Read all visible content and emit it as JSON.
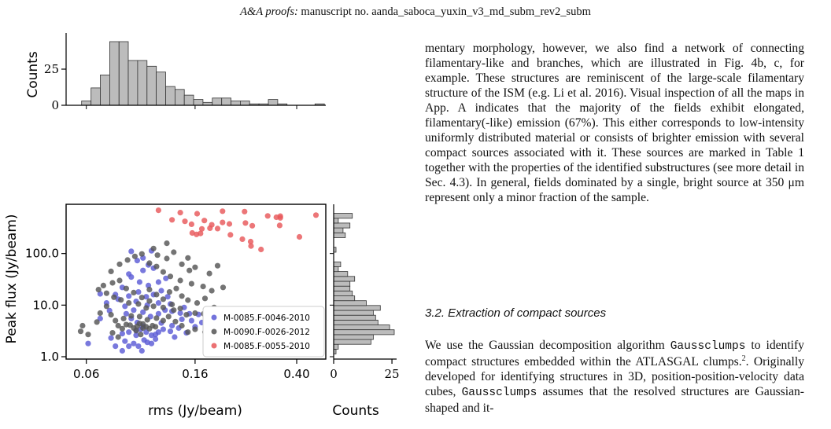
{
  "header": {
    "journal": "A&A proofs:",
    "rest": " manuscript no. aanda_saboca_yuxin_v3_md_subm_rev2_subm"
  },
  "figure": {
    "top_hist_ylabel": "Counts",
    "top_hist_yticks": [
      "0",
      "25"
    ],
    "main_xlabel": "rms (Jy/beam)",
    "main_ylabel": "Peak flux (Jy/beam)",
    "main_xticks": [
      "0.06",
      "0.16",
      "0.40"
    ],
    "main_yticks": [
      "1.0",
      "10.0",
      "100.0"
    ],
    "right_hist_xlabel": "Counts",
    "right_hist_xticks": [
      "0",
      "25"
    ],
    "legend": [
      {
        "label": "M-0085.F-0046-2010",
        "color": "#5b5bd6"
      },
      {
        "label": "M-0090.F-0026-2012",
        "color": "#555555"
      },
      {
        "label": "M-0085.F-0055-2010",
        "color": "#e8585a"
      }
    ]
  },
  "chart_data": {
    "type": "scatter",
    "xlabel": "rms (Jy/beam)",
    "ylabel": "Peak flux (Jy/beam)",
    "x_scale": "log",
    "y_scale": "log",
    "xlim": [
      0.05,
      0.52
    ],
    "ylim": [
      0.9,
      900
    ],
    "grid": false,
    "legend_position": "lower-right",
    "series": [
      {
        "name": "M-0085.F-0046-2010",
        "color": "#5b5bd6",
        "points": [
          [
            0.061,
            1.8
          ],
          [
            0.075,
            2.3
          ],
          [
            0.078,
            1.6
          ],
          [
            0.083,
            1.3
          ],
          [
            0.085,
            2.0
          ],
          [
            0.088,
            1.6
          ],
          [
            0.092,
            1.8
          ],
          [
            0.096,
            1.6
          ],
          [
            0.099,
            1.3
          ],
          [
            0.101,
            2.1
          ],
          [
            0.104,
            1.9
          ],
          [
            0.108,
            1.8
          ],
          [
            0.112,
            2.2
          ],
          [
            0.083,
            2.8
          ],
          [
            0.088,
            3.0
          ],
          [
            0.094,
            2.6
          ],
          [
            0.098,
            3.4
          ],
          [
            0.103,
            3.0
          ],
          [
            0.108,
            2.6
          ],
          [
            0.115,
            3.0
          ],
          [
            0.12,
            3.4
          ],
          [
            0.128,
            3.1
          ],
          [
            0.138,
            3.6
          ],
          [
            0.148,
            2.9
          ],
          [
            0.16,
            3.8
          ],
          [
            0.17,
            4.6
          ],
          [
            0.155,
            5.0
          ],
          [
            0.142,
            5.3
          ],
          [
            0.13,
            4.0
          ],
          [
            0.118,
            4.5
          ],
          [
            0.095,
            4.6
          ],
          [
            0.09,
            5.5
          ],
          [
            0.086,
            6.8
          ],
          [
            0.092,
            8.0
          ],
          [
            0.1,
            7.3
          ],
          [
            0.107,
            6.0
          ],
          [
            0.115,
            6.8
          ],
          [
            0.122,
            8.0
          ],
          [
            0.13,
            7.6
          ],
          [
            0.14,
            7.0
          ],
          [
            0.152,
            6.8
          ],
          [
            0.165,
            6.6
          ],
          [
            0.145,
            9.0
          ],
          [
            0.128,
            10.5
          ],
          [
            0.115,
            11.0
          ],
          [
            0.104,
            10.0
          ],
          [
            0.094,
            11.8
          ],
          [
            0.085,
            9.5
          ],
          [
            0.08,
            13.0
          ],
          [
            0.088,
            15.0
          ],
          [
            0.096,
            18.0
          ],
          [
            0.103,
            14.5
          ],
          [
            0.11,
            16.0
          ],
          [
            0.118,
            19.0
          ],
          [
            0.125,
            14.5
          ],
          [
            0.105,
            24.0
          ],
          [
            0.097,
            28.0
          ],
          [
            0.115,
            28.0
          ],
          [
            0.123,
            33.0
          ],
          [
            0.09,
            35.0
          ],
          [
            0.088,
            40.0
          ],
          [
            0.1,
            47.0
          ],
          [
            0.11,
            52.0
          ],
          [
            0.105,
            60.0
          ],
          [
            0.1,
            82.0
          ],
          [
            0.095,
            73.0
          ],
          [
            0.108,
            113.0
          ],
          [
            0.09,
            110.0
          ],
          [
            0.068,
            5.5
          ],
          [
            0.074,
            7.8
          ],
          [
            0.078,
            16.0
          ],
          [
            0.083,
            22.0
          ],
          [
            0.072,
            11.0
          ],
          [
            0.068,
            16.5
          ],
          [
            0.1,
            3.9
          ],
          [
            0.094,
            3.2
          ],
          [
            0.112,
            2.7
          ],
          [
            0.133,
            2.4
          ]
        ]
      },
      {
        "name": "M-0090.F-0026-2012",
        "color": "#555555",
        "points": [
          [
            0.057,
            3.1
          ],
          [
            0.058,
            4.0
          ],
          [
            0.061,
            2.7
          ],
          [
            0.066,
            4.7
          ],
          [
            0.068,
            7.0
          ],
          [
            0.072,
            9.5
          ],
          [
            0.075,
            6.5
          ],
          [
            0.078,
            5.0
          ],
          [
            0.08,
            4.0
          ],
          [
            0.083,
            3.5
          ],
          [
            0.086,
            4.2
          ],
          [
            0.089,
            4.1
          ],
          [
            0.092,
            3.6
          ],
          [
            0.095,
            3.9
          ],
          [
            0.097,
            4.4
          ],
          [
            0.1,
            4.3
          ],
          [
            0.103,
            3.8
          ],
          [
            0.106,
            3.5
          ],
          [
            0.109,
            4.0
          ],
          [
            0.112,
            3.8
          ],
          [
            0.094,
            3.2
          ],
          [
            0.098,
            2.7
          ],
          [
            0.1,
            3.6
          ],
          [
            0.08,
            2.4
          ],
          [
            0.076,
            2.9
          ],
          [
            0.084,
            5.5
          ],
          [
            0.09,
            6.2
          ],
          [
            0.097,
            6.0
          ],
          [
            0.104,
            5.2
          ],
          [
            0.113,
            5.6
          ],
          [
            0.12,
            5.0
          ],
          [
            0.126,
            6.0
          ],
          [
            0.134,
            4.8
          ],
          [
            0.142,
            4.0
          ],
          [
            0.15,
            3.0
          ],
          [
            0.16,
            3.4
          ],
          [
            0.175,
            3.0
          ],
          [
            0.148,
            6.5
          ],
          [
            0.16,
            7.0
          ],
          [
            0.173,
            6.8
          ],
          [
            0.14,
            8.6
          ],
          [
            0.13,
            10.3
          ],
          [
            0.12,
            9.0
          ],
          [
            0.11,
            9.5
          ],
          [
            0.103,
            8.8
          ],
          [
            0.096,
            10.5
          ],
          [
            0.088,
            11.0
          ],
          [
            0.082,
            12.6
          ],
          [
            0.077,
            14.2
          ],
          [
            0.072,
            17.0
          ],
          [
            0.067,
            20.0
          ],
          [
            0.07,
            24.0
          ],
          [
            0.076,
            27.0
          ],
          [
            0.081,
            30.0
          ],
          [
            0.086,
            21.0
          ],
          [
            0.092,
            17.5
          ],
          [
            0.099,
            14.0
          ],
          [
            0.106,
            20.0
          ],
          [
            0.113,
            16.0
          ],
          [
            0.12,
            13.0
          ],
          [
            0.127,
            18.0
          ],
          [
            0.135,
            21.0
          ],
          [
            0.142,
            15.0
          ],
          [
            0.15,
            12.5
          ],
          [
            0.163,
            11.0
          ],
          [
            0.175,
            13.5
          ],
          [
            0.19,
            9.0
          ],
          [
            0.203,
            6.0
          ],
          [
            0.155,
            26.0
          ],
          [
            0.14,
            30.0
          ],
          [
            0.128,
            36.0
          ],
          [
            0.12,
            44.0
          ],
          [
            0.113,
            56.0
          ],
          [
            0.106,
            65.0
          ],
          [
            0.099,
            98.0
          ],
          [
            0.114,
            93.0
          ],
          [
            0.124,
            80.0
          ],
          [
            0.132,
            106.0
          ],
          [
            0.142,
            62.0
          ],
          [
            0.152,
            47.0
          ],
          [
            0.16,
            54.0
          ],
          [
            0.182,
            41.0
          ],
          [
            0.196,
            58.0
          ],
          [
            0.172,
            23.0
          ],
          [
            0.186,
            19.0
          ],
          [
            0.075,
            45.0
          ],
          [
            0.081,
            62.0
          ],
          [
            0.087,
            75.0
          ],
          [
            0.093,
            88.0
          ],
          [
            0.124,
            158.0
          ],
          [
            0.15,
            82.0
          ],
          [
            0.11,
            125.0
          ],
          [
            0.206,
            22.0
          ],
          [
            0.132,
            8.0
          ],
          [
            0.106,
            12.0
          ]
        ]
      },
      {
        "name": "M-0085.F-0055-2010",
        "color": "#e8585a",
        "points": [
          [
            0.115,
            690.0
          ],
          [
            0.14,
            620.0
          ],
          [
            0.163,
            590.0
          ],
          [
            0.205,
            660.0
          ],
          [
            0.25,
            650.0
          ],
          [
            0.308,
            535.0
          ],
          [
            0.333,
            505.0
          ],
          [
            0.345,
            490.0
          ],
          [
            0.345,
            530.0
          ],
          [
            0.476,
            555.0
          ],
          [
            0.13,
            450.0
          ],
          [
            0.146,
            420.0
          ],
          [
            0.155,
            370.0
          ],
          [
            0.174,
            435.0
          ],
          [
            0.186,
            360.0
          ],
          [
            0.205,
            400.0
          ],
          [
            0.218,
            375.0
          ],
          [
            0.252,
            390.0
          ],
          [
            0.268,
            345.0
          ],
          [
            0.343,
            350.0
          ],
          [
            0.17,
            300.0
          ],
          [
            0.183,
            310.0
          ],
          [
            0.196,
            305.0
          ],
          [
            0.156,
            250.0
          ],
          [
            0.162,
            235.0
          ],
          [
            0.168,
            245.0
          ],
          [
            0.22,
            230.0
          ],
          [
            0.245,
            190.0
          ],
          [
            0.264,
            170.0
          ],
          [
            0.41,
            210.0
          ],
          [
            0.265,
            140.0
          ],
          [
            0.29,
            120.0
          ]
        ]
      }
    ],
    "top_histogram": {
      "xlabel": "rms (Jy/beam)",
      "ylabel": "Counts",
      "bin_edges": [
        0.0575,
        0.0626,
        0.0681,
        0.0741,
        0.0806,
        0.0876,
        0.0953,
        0.1037,
        0.1128,
        0.1227,
        0.1335,
        0.1452,
        0.1579,
        0.1718,
        0.1869,
        0.2033,
        0.2211,
        0.2406,
        0.2617,
        0.2847,
        0.3097,
        0.3369,
        0.3665,
        0.3987,
        0.4337,
        0.4718,
        0.5132
      ],
      "counts": [
        3,
        12,
        21,
        44,
        44,
        31,
        31,
        27,
        23,
        13,
        11,
        7,
        4,
        2,
        5,
        5,
        3,
        3,
        1,
        1,
        4,
        1,
        0,
        0,
        0,
        1
      ]
    },
    "right_histogram": {
      "ylabel": "Peak flux (Jy/beam)",
      "xlabel": "Counts",
      "bin_edges": [
        1.13,
        1.4,
        1.74,
        2.16,
        2.68,
        3.33,
        4.13,
        5.13,
        6.37,
        7.91,
        9.82,
        12.2,
        15.1,
        18.8,
        23.3,
        29.0,
        36.0,
        44.7,
        55.5,
        68.9,
        85.5,
        106.0,
        132.0,
        164.0,
        203.0,
        252.0,
        313.0,
        389.0,
        483.0,
        600.0
      ],
      "counts": [
        1,
        2,
        16,
        17,
        26,
        24,
        19,
        18,
        17,
        20,
        14,
        9,
        8,
        7,
        7,
        9,
        6,
        2,
        3,
        0,
        0,
        1,
        0,
        0,
        5,
        4,
        7,
        2,
        8
      ]
    }
  },
  "text": {
    "para1": "mentary morphology, however, we also find a network of connecting filamentary-like and branches, which are illustrated in Fig. 4b, c, for example. These structures are reminiscent of the large-scale filamentary structure of the ISM (e.g. Li et al. 2016). Visual inspection of all the maps in App. A indicates that the majority of the fields exhibit elongated, filamentary(-like) emission (67%). This either corresponds to low-intensity uniformly distributed material or consists of brighter emission with several compact sources associated with it. These sources are marked in Table 1 together with the properties of the identified substructures (see more detail in Sec. 4.3). In general, fields dominated by a single, bright source at 350 μm represent only a minor fraction of the sample.",
    "section_title": "3.2. Extraction of compact sources",
    "p2_a": "We use the Gaussian decomposition algorithm ",
    "p2_code1": "Gaussclumps",
    "p2_b": " to identify compact structures embedded within the ATLASGAL clumps.",
    "p2_sup": "2",
    "p2_c": ". Originally developed for identifying structures in 3D, position-position-velocity data cubes, ",
    "p2_code2": "Gaussclumps",
    "p2_d": " assumes that the resolved structures are Gaussian-shaped and it-"
  }
}
